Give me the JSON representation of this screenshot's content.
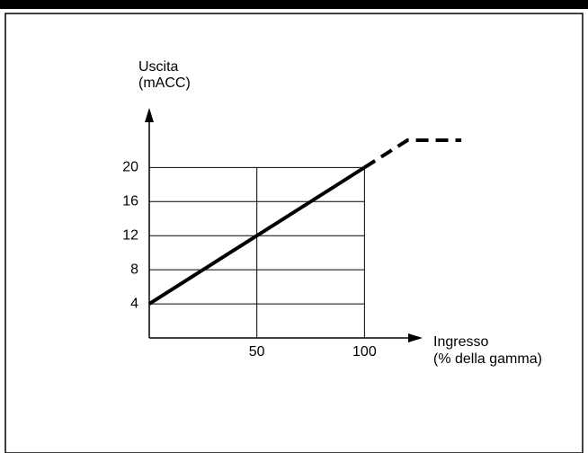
{
  "chart_data": {
    "type": "line",
    "ylabel": [
      "Uscita",
      "(mACC)"
    ],
    "xlabel": [
      "Ingresso",
      "(% della gamma)"
    ],
    "xlim": [
      0,
      127
    ],
    "ylim": [
      0,
      27
    ],
    "xticks": [
      50,
      100
    ],
    "yticks": [
      4,
      8,
      12,
      16,
      20
    ],
    "grid": true,
    "series": [
      {
        "color": "#000000",
        "style": "solid",
        "x": [
          0,
          100
        ],
        "values": [
          4,
          20
        ]
      },
      {
        "color": "#000000",
        "style": "dashed",
        "x": [
          100,
          120,
          145
        ],
        "values": [
          20,
          23.2,
          23.2
        ]
      }
    ]
  }
}
